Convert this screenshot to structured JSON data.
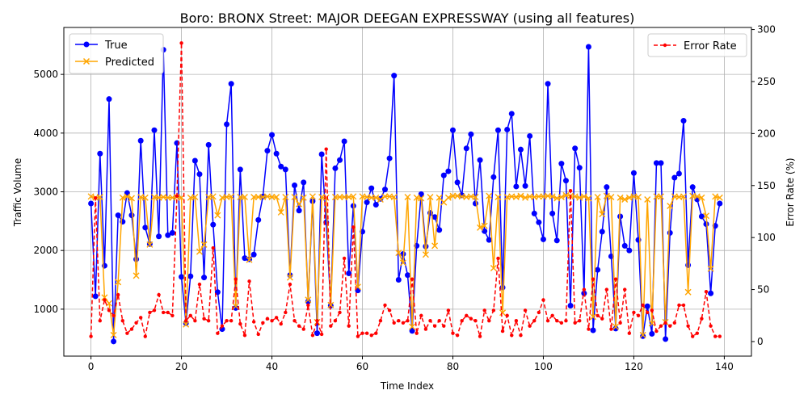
{
  "chart_data": {
    "type": "line",
    "title": "Boro: BRONX Street: MAJOR DEEGAN EXPRESSWAY (using all features)",
    "xlabel": "Time Index",
    "ylabel": "Traffic Volume",
    "y2label": "Error Rate (%)",
    "xlim": [
      -6,
      146
    ],
    "ylim": [
      200,
      5800
    ],
    "y2lim": [
      -14,
      302
    ],
    "xticks": [
      0,
      20,
      40,
      60,
      80,
      100,
      120,
      140
    ],
    "yticks": [
      1000,
      2000,
      3000,
      4000,
      5000
    ],
    "y2ticks": [
      0,
      50,
      100,
      150,
      200,
      250,
      300
    ],
    "grid": true,
    "legend_left": "upper-left",
    "legend_right": "upper-right",
    "x": [
      0,
      1,
      2,
      3,
      4,
      5,
      6,
      7,
      8,
      9,
      10,
      11,
      12,
      13,
      14,
      15,
      16,
      17,
      18,
      19,
      20,
      21,
      22,
      23,
      24,
      25,
      26,
      27,
      28,
      29,
      30,
      31,
      32,
      33,
      34,
      35,
      36,
      37,
      38,
      39,
      40,
      41,
      42,
      43,
      44,
      45,
      46,
      47,
      48,
      49,
      50,
      51,
      52,
      53,
      54,
      55,
      56,
      57,
      58,
      59,
      60,
      61,
      62,
      63,
      64,
      65,
      66,
      67,
      68,
      69,
      70,
      71,
      72,
      73,
      74,
      75,
      76,
      77,
      78,
      79,
      80,
      81,
      82,
      83,
      84,
      85,
      86,
      87,
      88,
      89,
      90,
      91,
      92,
      93,
      94,
      95,
      96,
      97,
      98,
      99,
      100,
      101,
      102,
      103,
      104,
      105,
      106,
      107,
      108,
      109,
      110,
      111,
      112,
      113,
      114,
      115,
      116,
      117,
      118,
      119,
      120,
      121,
      122,
      123,
      124,
      125,
      126,
      127,
      128,
      129,
      130,
      131,
      132,
      133,
      134,
      135,
      136,
      137,
      138,
      139
    ],
    "series": [
      {
        "name": "True",
        "axis": "left",
        "color": "#0000ff",
        "marker": "circle",
        "values": [
          2800,
          1220,
          3650,
          1740,
          4580,
          450,
          2600,
          2490,
          2980,
          2600,
          1850,
          3870,
          2390,
          2110,
          4050,
          2240,
          5420,
          2260,
          2300,
          3830,
          1550,
          760,
          1560,
          3530,
          3300,
          1540,
          3800,
          2440,
          1290,
          660,
          4150,
          4840,
          1020,
          3380,
          1870,
          1850,
          1930,
          2520,
          2920,
          3700,
          3970,
          3650,
          3430,
          3380,
          1580,
          3110,
          2680,
          3160,
          1130,
          2840,
          590,
          3640,
          2480,
          1060,
          3400,
          3540,
          3860,
          1610,
          2760,
          1320,
          2320,
          2820,
          3060,
          2780,
          2880,
          3040,
          3570,
          4980,
          1500,
          1940,
          1580,
          630,
          2080,
          2960,
          2070,
          2640,
          2570,
          2350,
          3280,
          3350,
          4050,
          3160,
          2940,
          3740,
          3980,
          2800,
          3540,
          2330,
          2180,
          3250,
          4050,
          1370,
          4060,
          4330,
          3090,
          3720,
          3100,
          3950,
          2630,
          2480,
          2190,
          4840,
          2630,
          2170,
          3480,
          3190,
          1060,
          3740,
          3410,
          1270,
          5470,
          640,
          1670,
          2320,
          3080,
          1900,
          670,
          2580,
          2080,
          2000,
          3320,
          2180,
          540,
          1050,
          580,
          3490,
          3490,
          490,
          2300,
          3240,
          3310,
          4210,
          1750,
          3080,
          2870,
          2580,
          2450,
          1270,
          2420,
          2800
        ]
      },
      {
        "name": "Predicted",
        "axis": "left",
        "color": "#ffa500",
        "marker": "x",
        "values": [
          2920,
          2900,
          2910,
          1200,
          1100,
          560,
          1460,
          2900,
          2920,
          2890,
          1570,
          2910,
          2900,
          2100,
          2910,
          2900,
          2910,
          2900,
          2900,
          2910,
          2900,
          740,
          2900,
          2910,
          1980,
          2100,
          2910,
          2920,
          2600,
          2900,
          2910,
          2920,
          1050,
          2910,
          2910,
          1840,
          2910,
          2910,
          2910,
          2920,
          2910,
          2910,
          2650,
          2910,
          1540,
          2910,
          2790,
          2900,
          1160,
          2920,
          780,
          2910,
          2900,
          1070,
          2910,
          2910,
          2910,
          2910,
          2920,
          1380,
          2920,
          2910,
          2900,
          2900,
          2870,
          2920,
          2920,
          2910,
          1960,
          1790,
          2910,
          700,
          2900,
          2890,
          1930,
          2910,
          2080,
          2900,
          2820,
          2900,
          2930,
          2930,
          2920,
          2910,
          2920,
          2910,
          2390,
          2420,
          2930,
          1700,
          2910,
          940,
          2910,
          2920,
          2910,
          2930,
          2900,
          2920,
          2910,
          2920,
          2920,
          2930,
          2920,
          2890,
          2910,
          2940,
          2930,
          2920,
          2900,
          2920,
          2890,
          870,
          2910,
          2620,
          2930,
          2910,
          700,
          2900,
          2870,
          2900,
          2920,
          2910,
          560,
          2870,
          760,
          2920,
          2920,
          780,
          2760,
          2920,
          2910,
          2920,
          1290,
          2930,
          2920,
          2900,
          2590,
          1690,
          2920,
          2900
        ]
      },
      {
        "name": "Error Rate",
        "axis": "right",
        "color": "#ff0000",
        "marker": "dot",
        "values": [
          5,
          138,
          20,
          40,
          30,
          25,
          45,
          20,
          8,
          12,
          18,
          23,
          5,
          28,
          30,
          45,
          28,
          28,
          25,
          140,
          287,
          20,
          25,
          20,
          55,
          22,
          20,
          90,
          8,
          15,
          20,
          20,
          60,
          17,
          6,
          58,
          19,
          7,
          18,
          22,
          20,
          23,
          17,
          28,
          55,
          20,
          15,
          12,
          35,
          6,
          20,
          7,
          185,
          15,
          20,
          28,
          80,
          15,
          110,
          5,
          8,
          8,
          6,
          8,
          20,
          35,
          30,
          18,
          20,
          18,
          20,
          60,
          8,
          25,
          12,
          20,
          15,
          20,
          15,
          30,
          8,
          6,
          20,
          25,
          22,
          20,
          5,
          30,
          20,
          30,
          80,
          10,
          25,
          6,
          20,
          6,
          30,
          15,
          20,
          28,
          40,
          20,
          25,
          20,
          18,
          20,
          145,
          18,
          20,
          50,
          12,
          60,
          25,
          22,
          50,
          12,
          60,
          18,
          50,
          8,
          28,
          25,
          35,
          28,
          30,
          10,
          15,
          18,
          15,
          18,
          35,
          35,
          15,
          5,
          8,
          22,
          48,
          15,
          5,
          5
        ]
      }
    ]
  }
}
